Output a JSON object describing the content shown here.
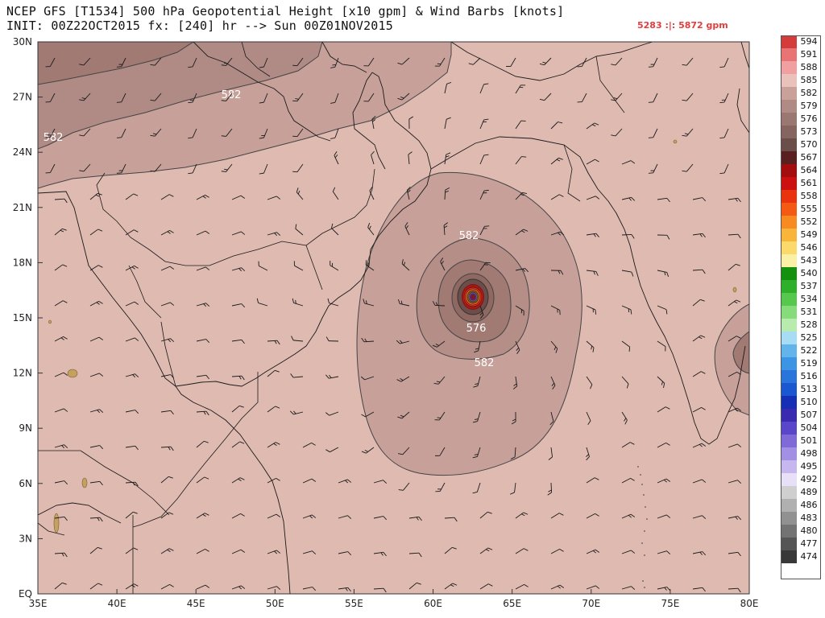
{
  "header": {
    "title_line1": "NCEP GFS [T1534] 500 hPa Geopotential Height [x10 gpm] & Wind Barbs [knots]",
    "title_line2": "INIT: 00Z22OCT2015 fx: [240] hr --> Sun 00Z01NOV2015",
    "range": "5283 :|: 5872 gpm"
  },
  "map": {
    "lon_labels": [
      "35E",
      "40E",
      "45E",
      "50E",
      "55E",
      "60E",
      "65E",
      "70E",
      "75E",
      "80E"
    ],
    "lat_labels": [
      "30N",
      "27N",
      "24N",
      "21N",
      "18N",
      "15N",
      "12N",
      "9N",
      "6N",
      "3N",
      "EQ"
    ],
    "contour_labels": [
      "582",
      "582",
      "582",
      "576",
      "582"
    ],
    "colors": {
      "base_fill": "#dfbab1",
      "fill_582": "#c7a09a",
      "fill_579": "#b58e88",
      "fill_576": "#a17a74",
      "fill_573": "#8f6862",
      "fill_north": "#a67f78",
      "contour": "#444444",
      "coast": "#1a1a1a"
    }
  },
  "colorbar": {
    "levels": [
      "594",
      "591",
      "588",
      "585",
      "582",
      "579",
      "576",
      "573",
      "570",
      "567",
      "564",
      "561",
      "558",
      "555",
      "552",
      "549",
      "546",
      "543",
      "540",
      "537",
      "534",
      "531",
      "528",
      "525",
      "522",
      "519",
      "516",
      "513",
      "510",
      "507",
      "504",
      "501",
      "498",
      "495",
      "492",
      "489",
      "486",
      "483",
      "480",
      "477",
      "474"
    ],
    "colors": [
      "#d43b3b",
      "#e87474",
      "#f0a0a0",
      "#e9c2bc",
      "#c9a09a",
      "#b08b86",
      "#9a7771",
      "#866460",
      "#6b4e4a",
      "#5a1f1f",
      "#a40d0d",
      "#cc1010",
      "#e8330e",
      "#f55a14",
      "#f78a20",
      "#f9b53a",
      "#fbd96a",
      "#fbf1a6",
      "#14900f",
      "#2fb02a",
      "#55c84d",
      "#86dc7a",
      "#b8ecaf",
      "#a6dcf4",
      "#64b4ec",
      "#3c95e4",
      "#2a75dc",
      "#1a57d0",
      "#1530b4",
      "#3a2ab0",
      "#5a46c8",
      "#7f6ad8",
      "#a290e4",
      "#c6b8ef",
      "#e7e0f7",
      "#cfcfcf",
      "#b0b0b0",
      "#919191",
      "#737373",
      "#555555",
      "#383838"
    ]
  }
}
